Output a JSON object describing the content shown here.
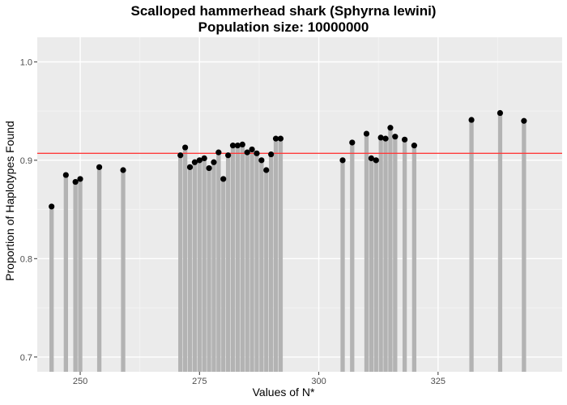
{
  "chart_data": {
    "type": "bar",
    "title": "Scalloped hammerhead shark (Sphyrna lewini)",
    "subtitle": "Population size: 10000000",
    "xlabel": "Values of N*",
    "ylabel": "Proportion of Haplotypes Found",
    "xlim": [
      241,
      351
    ],
    "ylim": [
      0.685,
      1.025
    ],
    "x_ticks": [
      250,
      275,
      300,
      325
    ],
    "y_ticks": [
      0.7,
      0.8,
      0.9,
      1.0
    ],
    "y_tick_labels": [
      "0.7",
      "0.8",
      "0.9",
      "1.0"
    ],
    "reference_line": {
      "y": 0.907,
      "color": "#ff3b3b"
    },
    "grid": true,
    "colors": {
      "panel": "#ebebeb",
      "bar": "#b3b3b3",
      "point": "#000000"
    },
    "series": [
      {
        "x": [
          244,
          247,
          249,
          250,
          254,
          259,
          271,
          272,
          273,
          274,
          275,
          276,
          277,
          278,
          279,
          280,
          281,
          282,
          283,
          284,
          285,
          286,
          287,
          288,
          289,
          290,
          291,
          292,
          305,
          307,
          310,
          311,
          312,
          313,
          314,
          315,
          316,
          318,
          320,
          332,
          338,
          343
        ],
        "y": [
          0.853,
          0.885,
          0.878,
          0.881,
          0.893,
          0.89,
          0.905,
          0.913,
          0.893,
          0.898,
          0.9,
          0.902,
          0.892,
          0.898,
          0.908,
          0.881,
          0.905,
          0.915,
          0.915,
          0.916,
          0.908,
          0.911,
          0.907,
          0.9,
          0.89,
          0.906,
          0.922,
          0.922,
          0.9,
          0.918,
          0.927,
          0.902,
          0.9,
          0.923,
          0.922,
          0.933,
          0.924,
          0.921,
          0.915,
          0.941,
          0.948,
          0.94
        ]
      }
    ]
  }
}
